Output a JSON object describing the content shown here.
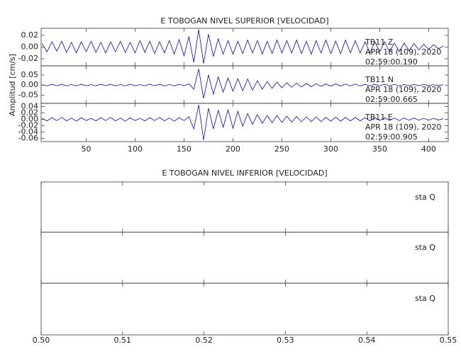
{
  "chart_data": [
    {
      "type": "line",
      "title": "E TOBOGAN NIVEL SUPERIOR [VELOCIDAD]",
      "y_label": "Amplitud [cm/s]",
      "color": "#0000ff",
      "xlim": [
        4,
        420
      ],
      "xticks": [
        50,
        100,
        150,
        200,
        250,
        300,
        350,
        400
      ],
      "x": [
        5,
        10,
        15,
        20,
        25,
        30,
        35,
        40,
        45,
        50,
        55,
        60,
        65,
        70,
        75,
        80,
        85,
        90,
        95,
        100,
        105,
        110,
        115,
        120,
        125,
        130,
        135,
        140,
        145,
        150,
        155,
        160,
        165,
        170,
        175,
        180,
        185,
        190,
        195,
        200,
        205,
        210,
        215,
        220,
        225,
        230,
        235,
        240,
        245,
        250,
        255,
        260,
        265,
        270,
        275,
        280,
        285,
        290,
        295,
        300,
        305,
        310,
        315,
        320,
        325,
        330,
        335,
        340,
        345,
        350,
        355,
        360,
        365,
        370,
        375,
        380,
        385,
        390,
        395,
        400,
        405,
        410,
        415
      ],
      "panels": [
        {
          "annotations": [
            "TB11 Z",
            "APR 18 (109), 2020",
            "02:59:00.190"
          ],
          "ylim": [
            -0.032,
            0.032
          ],
          "yticks": [
            {
              "value": 0.02,
              "label": "0.02"
            },
            {
              "value": 0,
              "label": "0.00"
            },
            {
              "value": -0.02,
              "label": "-0.02"
            }
          ],
          "values": [
            0.006,
            -0.008,
            0.009,
            -0.007,
            0.01,
            -0.009,
            0.008,
            -0.01,
            0.009,
            -0.008,
            0.01,
            -0.009,
            0.008,
            -0.01,
            0.009,
            -0.008,
            0.01,
            -0.009,
            0.008,
            -0.01,
            0.011,
            -0.009,
            0.01,
            -0.011,
            0.009,
            -0.01,
            0.011,
            -0.012,
            0.013,
            -0.015,
            0.018,
            -0.026,
            0.03,
            -0.028,
            0.022,
            -0.016,
            0.014,
            -0.012,
            0.011,
            -0.012,
            0.01,
            -0.011,
            0.012,
            -0.01,
            0.011,
            -0.012,
            0.01,
            -0.011,
            0.012,
            -0.01,
            0.011,
            -0.01,
            0.012,
            -0.011,
            0.01,
            -0.012,
            0.011,
            -0.01,
            0.012,
            -0.011,
            0.01,
            -0.011,
            0.012,
            -0.01,
            0.011,
            -0.01,
            0.009,
            -0.01,
            0.009,
            -0.008,
            0.009,
            -0.008,
            0.007,
            -0.008,
            0.007,
            -0.006,
            0.006,
            -0.005,
            0.005,
            -0.004,
            0.004,
            -0.003,
            0.002
          ]
        },
        {
          "annotations": [
            "TB11 N",
            "APR 18 (109), 2020",
            "02:59:00.665"
          ],
          "ylim": [
            -0.09,
            0.095
          ],
          "yticks": [
            {
              "value": 0.05,
              "label": "0.05"
            },
            {
              "value": 0,
              "label": "0.00"
            },
            {
              "value": -0.05,
              "label": "-0.05"
            }
          ],
          "values": [
            0.002,
            -0.003,
            0.004,
            -0.003,
            0.004,
            -0.004,
            0.003,
            -0.004,
            0.004,
            -0.003,
            0.002,
            -0.003,
            0.004,
            -0.003,
            0.004,
            -0.004,
            0.003,
            -0.004,
            0.004,
            -0.003,
            0.002,
            -0.003,
            0.004,
            -0.003,
            0.004,
            -0.004,
            0.003,
            -0.004,
            0.004,
            -0.003,
            0.006,
            -0.02,
            0.08,
            -0.065,
            0.05,
            -0.045,
            0.04,
            -0.035,
            0.035,
            -0.03,
            0.032,
            -0.028,
            0.03,
            -0.025,
            0.022,
            -0.02,
            0.018,
            -0.016,
            0.015,
            -0.013,
            0.012,
            -0.011,
            0.01,
            -0.009,
            0.008,
            -0.008,
            0.007,
            -0.006,
            0.006,
            -0.005,
            0.006,
            -0.005,
            0.005,
            -0.004,
            0.005,
            -0.004,
            0.004,
            -0.004,
            0.004,
            -0.003,
            0.004,
            -0.003,
            0.003,
            -0.003,
            0.003,
            -0.003,
            0.003,
            -0.002,
            0.003,
            -0.002,
            0.002,
            -0.002,
            0.002
          ]
        },
        {
          "annotations": [
            "TB11 E",
            "APR 18 (109), 2020",
            "02:59:00.905"
          ],
          "ylim": [
            -0.07,
            0.05
          ],
          "yticks": [
            {
              "value": 0.04,
              "label": "0.04"
            },
            {
              "value": 0.02,
              "label": "0.02"
            },
            {
              "value": 0,
              "label": "0.00"
            },
            {
              "value": -0.02,
              "label": "-0.02"
            },
            {
              "value": -0.04,
              "label": "-0.04"
            },
            {
              "value": -0.06,
              "label": "-0.06"
            }
          ],
          "values": [
            0.003,
            -0.005,
            0.005,
            -0.004,
            0.006,
            -0.005,
            0.004,
            -0.006,
            0.005,
            -0.004,
            0.003,
            -0.005,
            0.005,
            -0.004,
            0.006,
            -0.005,
            0.004,
            -0.006,
            0.005,
            -0.004,
            0.003,
            -0.005,
            0.005,
            -0.004,
            0.006,
            -0.005,
            0.004,
            -0.006,
            0.005,
            -0.004,
            0.008,
            -0.03,
            0.045,
            -0.065,
            0.035,
            -0.03,
            0.028,
            -0.025,
            0.03,
            -0.028,
            0.025,
            -0.022,
            0.018,
            -0.016,
            0.015,
            -0.013,
            0.012,
            -0.011,
            0.012,
            -0.01,
            0.01,
            -0.009,
            0.009,
            -0.008,
            0.008,
            -0.007,
            0.007,
            -0.007,
            0.006,
            -0.006,
            0.007,
            -0.006,
            0.006,
            -0.005,
            0.006,
            -0.005,
            0.005,
            -0.005,
            0.005,
            -0.004,
            0.005,
            -0.004,
            0.004,
            -0.004,
            0.004,
            -0.003,
            0.004,
            -0.003,
            0.003,
            -0.003,
            0.003,
            -0.002,
            0.002
          ]
        }
      ]
    },
    {
      "type": "line",
      "title": "E TOBOGAN NIVEL INFERIOR [VELOCIDAD]",
      "xlim": [
        0.5,
        0.55
      ],
      "xticks": [
        {
          "value": 0.5,
          "label": "0.50"
        },
        {
          "value": 0.51,
          "label": "0.51"
        },
        {
          "value": 0.52,
          "label": "0.52"
        },
        {
          "value": 0.53,
          "label": "0.53"
        },
        {
          "value": 0.54,
          "label": "0.54"
        },
        {
          "value": 0.55,
          "label": "0.55"
        }
      ],
      "panels": [
        {
          "annotations": [
            "sta Q"
          ]
        },
        {
          "annotations": [
            "sta Q"
          ]
        },
        {
          "annotations": [
            "sta Q"
          ]
        }
      ]
    }
  ]
}
